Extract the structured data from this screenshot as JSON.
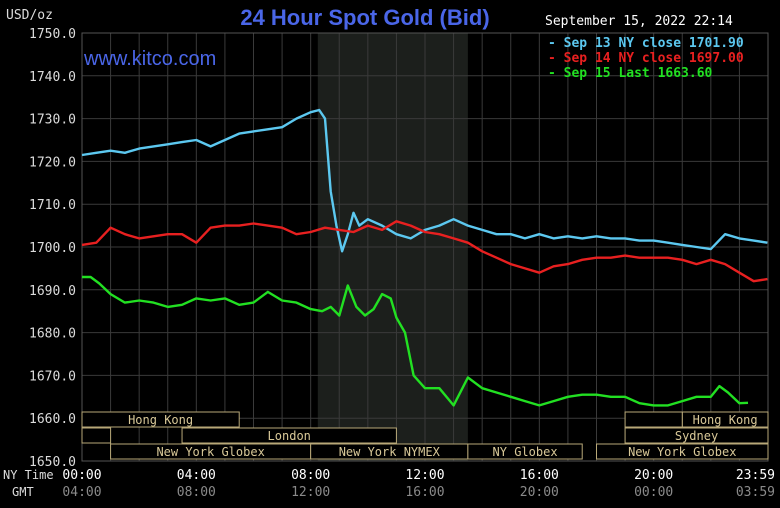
{
  "header": {
    "title": "24 Hour Spot Gold (Bid)",
    "unit": "USD/oz",
    "brand": "www.kitco.com",
    "timestamp": "September 15, 2022 22:14"
  },
  "legend": [
    {
      "text": "Sep 13 NY close 1701.90",
      "color": "#5cc8f0"
    },
    {
      "text": "Sep 14 NY close 1697.00",
      "color": "#e82020"
    },
    {
      "text": "Sep 15 Last 1663.60",
      "color": "#22e022"
    }
  ],
  "axis_rows": {
    "ny_label": "NY Time",
    "gmt_label": "GMT"
  },
  "sessions": [
    {
      "name": "Hong Kong",
      "start": 0.0,
      "end": 2.75,
      "row": 0
    },
    {
      "name": "",
      "start": 2.75,
      "end": 3.5,
      "row": 1
    },
    {
      "name": "",
      "start": 0.0,
      "end": 0.5,
      "row": 1
    },
    {
      "name": "London",
      "start": 1.75,
      "end": 5.5,
      "row": 1
    },
    {
      "name": "New York Globex",
      "start": 0.5,
      "end": 4.0,
      "row": 2
    },
    {
      "name": "New York NYMEX",
      "start": 4.0,
      "end": 6.75,
      "row": 2
    },
    {
      "name": "NY Globex",
      "start": 6.75,
      "end": 8.75,
      "row": 2
    },
    {
      "name": "Hong Kong",
      "start": 10.5,
      "end": 12.0,
      "row": 0
    },
    {
      "name": "",
      "start": 9.5,
      "end": 10.5,
      "row": 0
    },
    {
      "name": "Sydney",
      "start": 9.5,
      "end": 12.0,
      "row": 1
    },
    {
      "name": "New York Globex",
      "start": 9.0,
      "end": 12.0,
      "row": 2
    }
  ],
  "chart_data": {
    "type": "line",
    "title": "24 Hour Spot Gold (Bid)",
    "ylabel": "USD/oz",
    "ylim": [
      1650,
      1750
    ],
    "xlim": [
      0,
      24
    ],
    "yticks": [
      "1650.0",
      "1660.0",
      "1670.0",
      "1680.0",
      "1690.0",
      "1700.0",
      "1710.0",
      "1720.0",
      "1730.0",
      "1740.0",
      "1750.0"
    ],
    "xticks_ny": [
      "00:00",
      "04:00",
      "08:00",
      "12:00",
      "16:00",
      "20:00",
      "23:59"
    ],
    "xticks_gmt": [
      "04:00",
      "08:00",
      "12:00",
      "16:00",
      "20:00",
      "00:00",
      "03:59"
    ],
    "shaded_region": [
      8.25,
      13.5
    ],
    "grid": true,
    "series": [
      {
        "name": "Sep 13 NY close 1701.90",
        "color": "#5cc8f0",
        "x": [
          0,
          0.5,
          1,
          1.5,
          2,
          2.5,
          3,
          3.5,
          4,
          4.5,
          5,
          5.5,
          6,
          6.5,
          7,
          7.5,
          8,
          8.3,
          8.5,
          8.7,
          8.9,
          9.1,
          9.3,
          9.5,
          9.7,
          10,
          10.5,
          11,
          11.5,
          12,
          12.5,
          13,
          13.5,
          14,
          14.5,
          15,
          15.5,
          16,
          16.5,
          17,
          17.5,
          18,
          18.5,
          19,
          19.5,
          20,
          20.5,
          21,
          21.5,
          22,
          22.5,
          23,
          23.5,
          23.98
        ],
        "y": [
          1721.5,
          1722,
          1722.5,
          1722,
          1723,
          1723.5,
          1724,
          1724.5,
          1725,
          1723.5,
          1725,
          1726.5,
          1727,
          1727.5,
          1728,
          1730,
          1731.5,
          1732,
          1730,
          1713,
          1705,
          1699,
          1703,
          1708,
          1705,
          1706.5,
          1705,
          1703,
          1702,
          1704,
          1705,
          1706.5,
          1705,
          1704,
          1703,
          1703,
          1702,
          1703,
          1702,
          1702.5,
          1702,
          1702.5,
          1702,
          1702,
          1701.5,
          1701.5,
          1701,
          1700.5,
          1700,
          1699.5,
          1703,
          1702,
          1701.5,
          1701
        ]
      },
      {
        "name": "Sep 14 NY close 1697.00",
        "color": "#e82020",
        "x": [
          0,
          0.5,
          1,
          1.5,
          2,
          2.5,
          3,
          3.5,
          4,
          4.5,
          5,
          5.5,
          6,
          6.5,
          7,
          7.5,
          8,
          8.5,
          9,
          9.5,
          10,
          10.5,
          11,
          11.5,
          12,
          12.5,
          13,
          13.5,
          14,
          14.5,
          15,
          15.5,
          16,
          16.5,
          17,
          17.5,
          18,
          18.5,
          19,
          19.5,
          20,
          20.5,
          21,
          21.5,
          22,
          22.5,
          23,
          23.5,
          23.98
        ],
        "y": [
          1700.5,
          1701,
          1704.5,
          1703,
          1702,
          1702.5,
          1703,
          1703,
          1701,
          1704.5,
          1705,
          1705,
          1705.5,
          1705,
          1704.5,
          1703,
          1703.5,
          1704.5,
          1704,
          1703.5,
          1705,
          1704,
          1706,
          1705,
          1703.5,
          1703,
          1702,
          1701,
          1699,
          1697.5,
          1696,
          1695,
          1694,
          1695.5,
          1696,
          1697,
          1697.5,
          1697.5,
          1698,
          1697.5,
          1697.5,
          1697.5,
          1697,
          1696,
          1697,
          1696,
          1694,
          1692,
          1692.5
        ]
      },
      {
        "name": "Sep 15 Last 1663.60",
        "color": "#22e022",
        "x": [
          0,
          0.3,
          0.6,
          1,
          1.5,
          2,
          2.5,
          3,
          3.5,
          4,
          4.5,
          5,
          5.5,
          6,
          6.5,
          7,
          7.5,
          8,
          8.4,
          8.7,
          9,
          9.3,
          9.6,
          9.9,
          10.2,
          10.5,
          10.8,
          11,
          11.3,
          11.6,
          12,
          12.5,
          13,
          13.5,
          14,
          14.5,
          15,
          15.5,
          16,
          16.5,
          17,
          17.5,
          18,
          18.5,
          19,
          19.5,
          20,
          20.5,
          21,
          21.5,
          22,
          22.3,
          22.6,
          23,
          23.3
        ],
        "y": [
          1693,
          1693,
          1691.5,
          1689,
          1687,
          1687.5,
          1687,
          1686,
          1686.5,
          1688,
          1687.5,
          1688,
          1686.5,
          1687,
          1689.5,
          1687.5,
          1687,
          1685.5,
          1685,
          1686,
          1684,
          1691,
          1686,
          1684,
          1685.5,
          1689,
          1688,
          1683.5,
          1680,
          1670,
          1667,
          1667,
          1663,
          1669.5,
          1667,
          1666,
          1665,
          1664,
          1663,
          1664,
          1665,
          1665.5,
          1665.5,
          1665,
          1665,
          1663.5,
          1663,
          1663,
          1664,
          1665,
          1665,
          1667.5,
          1666,
          1663.5,
          1663.6
        ]
      }
    ]
  }
}
